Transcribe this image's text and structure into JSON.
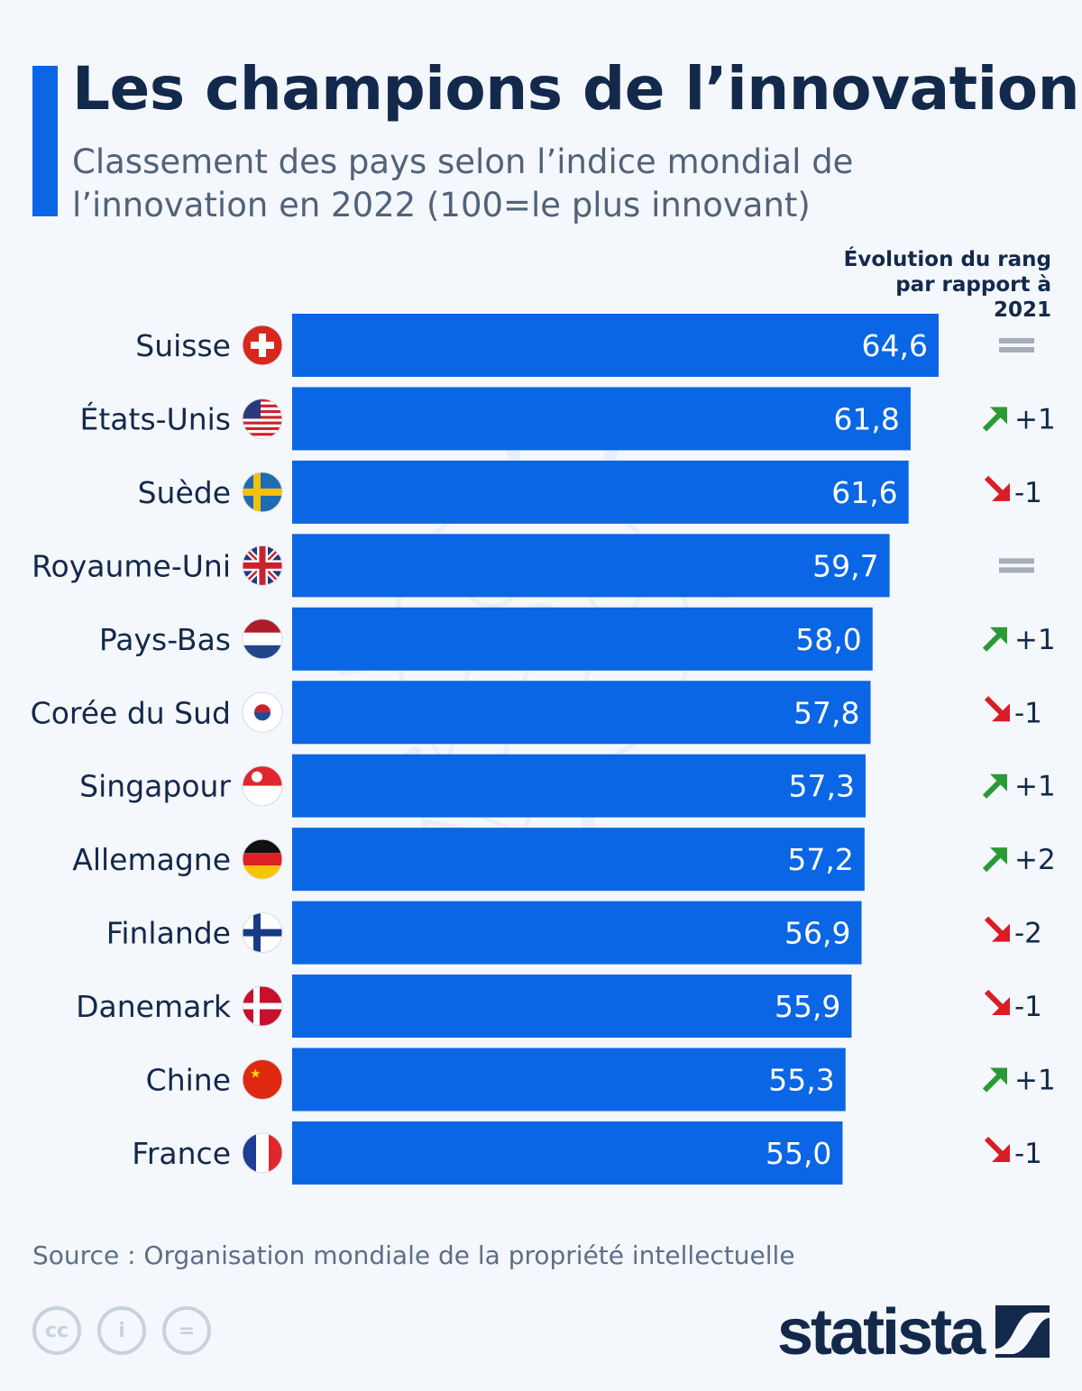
{
  "header": {
    "title": "Les champions de l’innovation",
    "subtitle": "Classement des pays selon l’indice mondial de l’innovation en 2022 (100=le plus innovant)"
  },
  "chart_data": {
    "type": "bar",
    "orientation": "horizontal",
    "title": "Les champions de l’innovation",
    "subtitle": "Classement des pays selon l’indice mondial de l’innovation en 2022 (100=le plus innovant)",
    "categories": [
      "Suisse",
      "États-Unis",
      "Suède",
      "Royaume-Uni",
      "Pays-Bas",
      "Corée du Sud",
      "Singapour",
      "Allemagne",
      "Finlande",
      "Danemark",
      "Chine",
      "France"
    ],
    "values": [
      64.6,
      61.8,
      61.6,
      59.7,
      58.0,
      57.8,
      57.3,
      57.2,
      56.9,
      55.9,
      55.3,
      55.0
    ],
    "value_labels": [
      "64,6",
      "61,8",
      "61,6",
      "59,7",
      "58,0",
      "57,8",
      "57,3",
      "57,2",
      "56,9",
      "55,9",
      "55,3",
      "55,0"
    ],
    "flags": [
      "ch",
      "us",
      "se",
      "gb",
      "nl",
      "kr",
      "sg",
      "de",
      "fi",
      "dk",
      "cn",
      "fr"
    ],
    "rank_change_header": "Évolution du rang par rapport à 2021",
    "rank_change": [
      "=",
      "+1",
      "-1",
      "=",
      "+1",
      "-1",
      "+1",
      "+2",
      "-2",
      "-1",
      "+1",
      "-1"
    ],
    "xlim": [
      0,
      64.6
    ],
    "grid": false,
    "bar_color": "#0a66e4",
    "up_color": "#2a9a35",
    "down_color": "#d81d27",
    "same_color": "#a5adb6"
  },
  "footer": {
    "source": "Source : Organisation mondiale de la propriété intellectuelle",
    "logo": "statista",
    "license_icons": [
      "cc-icon",
      "by-icon",
      "nd-icon"
    ]
  }
}
